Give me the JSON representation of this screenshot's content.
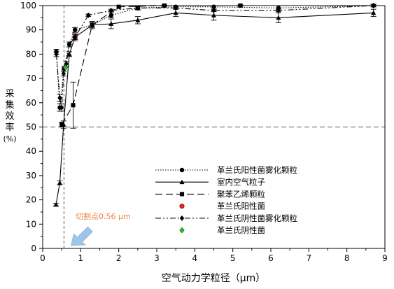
{
  "chart_data": {
    "type": "line",
    "xlabel": "空气动力学粒径（μm）",
    "ylabel": "采集效率(%)",
    "ylabel_lines": [
      "采",
      "集",
      "效",
      "率",
      "(%)"
    ],
    "xlim": [
      0,
      9
    ],
    "ylim": [
      0,
      100
    ],
    "xticks": [
      0,
      1,
      2,
      3,
      4,
      5,
      6,
      7,
      8,
      9
    ],
    "yticks": [
      0,
      10,
      20,
      30,
      40,
      50,
      60,
      70,
      80,
      90,
      100
    ],
    "reference_line": {
      "y": 50
    },
    "cut_point": {
      "x": 0.56,
      "label": "切割点0.56 μm",
      "label_color": "#f0823c",
      "arrow_color": "#9ec5e6"
    },
    "legend_position": "lower-center",
    "series": [
      {
        "name": "革兰氏阳性菌雾化颗粒",
        "line": "dotted",
        "marker": "circle",
        "color": "#000000",
        "x": [
          0.36,
          0.45,
          0.56,
          0.7,
          0.85,
          1.3,
          1.8,
          2.5,
          3.5,
          4.5,
          6.2,
          8.7
        ],
        "y": [
          81,
          58,
          74,
          84,
          90,
          92,
          96,
          99,
          99.5,
          99.5,
          99,
          100
        ],
        "err": [
          1,
          1.5,
          1,
          1,
          1,
          1,
          1,
          0.8,
          0.5,
          0.5,
          1,
          0.5
        ]
      },
      {
        "name": "室内空气粒子",
        "line": "solid",
        "marker": "triangle",
        "color": "#000000",
        "x": [
          0.35,
          0.45,
          0.55,
          0.7,
          0.85,
          1.3,
          1.8,
          2.5,
          3.5,
          4.5,
          6.2,
          8.7
        ],
        "y": [
          18,
          27,
          51,
          80,
          87,
          92,
          92.5,
          94,
          97,
          96,
          95,
          97
        ],
        "err": [
          0.5,
          0.8,
          1.5,
          1,
          1.5,
          1.5,
          2,
          1.5,
          1.5,
          2,
          2,
          1.5
        ]
      },
      {
        "name": "聚苯乙烯颗粒",
        "line": "dashed",
        "marker": "square",
        "color": "#000000",
        "x": [
          0.5,
          0.8,
          1.3,
          2.0,
          3.2,
          5.2
        ],
        "y": [
          51,
          59,
          92,
          99.5,
          100,
          100
        ],
        "err": [
          1,
          9.5,
          1.5,
          0.5,
          0.3,
          0.3
        ]
      },
      {
        "name": "革兰氏阳性菌",
        "line": "none",
        "marker": "circle",
        "color": "#e8241c",
        "x": [
          0.85
        ],
        "y": [
          87
        ],
        "err": [
          0
        ]
      },
      {
        "name": "革兰氏阴性菌雾化颗粒",
        "line": "dashdotdot",
        "marker": "diamond",
        "color": "#000000",
        "x": [
          0.36,
          0.45,
          0.5,
          0.55,
          0.62,
          0.7,
          0.85,
          1.2,
          1.8,
          2.5,
          3.5,
          4.5,
          6.2,
          8.7
        ],
        "y": [
          80,
          62,
          58,
          72,
          76,
          84,
          87,
          96,
          98,
          99,
          99,
          98,
          98,
          100
        ],
        "err": [
          1,
          1.5,
          1.5,
          1,
          1,
          1,
          1,
          0.5,
          0.5,
          0.5,
          0.5,
          0.5,
          0.5,
          0.5
        ]
      },
      {
        "name": "革兰氏阴性菌",
        "line": "none",
        "marker": "diamond",
        "color": "#22c12a",
        "x": [
          0.6
        ],
        "y": [
          74.5
        ],
        "err": [
          0
        ]
      }
    ]
  }
}
